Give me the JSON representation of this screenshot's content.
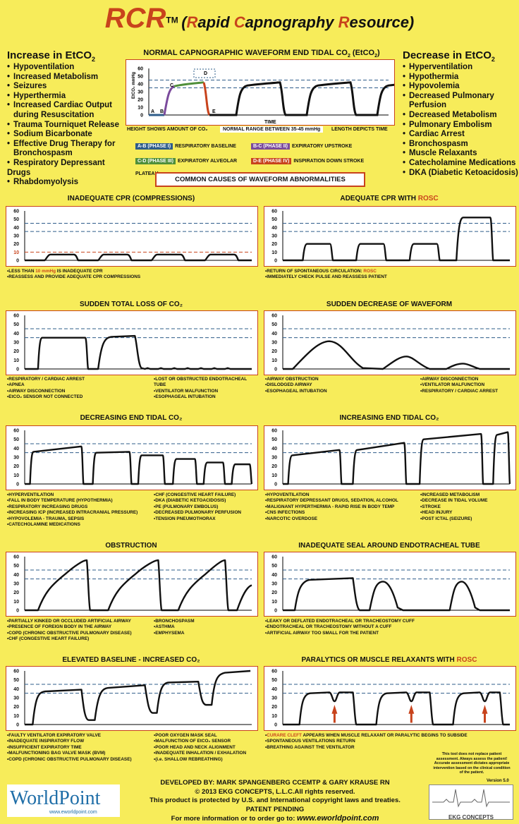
{
  "header": {
    "rcr": "RCR",
    "tm": "TM",
    "sub_pre": "(",
    "sub_r": "R",
    "sub_apid": "apid ",
    "sub_c": "C",
    "sub_apno": "apnography ",
    "sub_res_r": "R",
    "sub_esource": "esource)"
  },
  "increase": {
    "title": "Increase in EtCO",
    "sub": "2",
    "items": [
      "Hypoventilation",
      "Increased Metabolism",
      "Seizures",
      "Hyperthermia",
      "Increased Cardiac Output",
      "during Resuscitation",
      "Trauma Tourniquet Release",
      "Sodium Bicarbonate",
      "Effective Drug Therapy for",
      "Bronchospasm",
      "Respiratory Depressant Drugs",
      "Rhabdomyolysis"
    ]
  },
  "decrease": {
    "title": "Decrease in EtCO",
    "sub": "2",
    "items": [
      "Hyperventilation",
      "Hypothermia",
      "Hypovolemia",
      "Decreased Pulmonary",
      "Perfusion",
      "Decreased Metabolism",
      "Pulmonary Embolism",
      "Cardiac Arrest",
      "Bronchospasm",
      "Muscle Relaxants",
      "Catecholamine Medications",
      "DKA (Diabetic Ketoacidosis)"
    ]
  },
  "normal": {
    "title": "NORMAL CAPNOGRAPHIC WAVEFORM END TIDAL CO",
    "title_sub": "2",
    "title_end": " (EtCO",
    "title_end2": ")",
    "ylabel": "EtCO₂ mmHg",
    "time": "TIME",
    "yticks": [
      "60",
      "50",
      "40",
      "30",
      "20",
      "10",
      "0"
    ],
    "letters": [
      "A",
      "B",
      "C",
      "D",
      "E"
    ],
    "cap_left": "HEIGHT SHOWS AMOUNT OF CO₂",
    "cap_mid": "NORMAL RANGE BETWEEN 35-45 mmHg",
    "cap_right": "LENGTH DEPICTS TIME",
    "phases": [
      {
        "tag": "A-B (PHASE I)",
        "text": "RESPIRATORY BASELINE",
        "color": "#2e5c8a"
      },
      {
        "tag": "B-C (PHASE II)",
        "text": "EXPIRATORY UPSTROKE",
        "color": "#7b4a9c"
      },
      {
        "tag": "C-D (PHASE III)",
        "text": "EXPIRATORY ALVEOLAR PLATEAU",
        "color": "#4f8f3a"
      },
      {
        "tag": "D-E (PHASE IV)",
        "text": "INSPIRATION DOWN STROKE",
        "color": "#c8431c"
      }
    ]
  },
  "common": "COMMON CAUSES OF WAVEFORM ABNORMALITIES",
  "yticks": [
    "60",
    "50",
    "40",
    "30",
    "20",
    "10",
    "0"
  ],
  "panels": [
    {
      "title": "INADEQUATE CPR (COMPRESSIONS)",
      "notes_left": [
        "LESS THAN 10 mmHg IS INADEQUATE CPR",
        "REASSESS AND PROVIDE ADEQUATE CPR COMPRESSIONS"
      ],
      "notes_right": []
    },
    {
      "title": "ADEQUATE CPR WITH ",
      "title_red": "ROSC",
      "notes_left": [
        "RETURN OF SPONTANEOUS CIRCULATION: ROSC",
        "IMMEDIATELY CHECK PULSE AND REASSESS PATIENT"
      ],
      "notes_right": []
    },
    {
      "title": "SUDDEN TOTAL LOSS OF CO₂",
      "notes_left": [
        "RESPIRATORY / CARDIAC ARREST",
        "APNEA",
        "AIRWAY DISCONNECTION",
        "EtCO₂ SENSOR NOT CONNECTED"
      ],
      "notes_right": [
        "LOST OR OBSTRUCTED ENDOTRACHEAL TUBE",
        "VENTILATOR MALFUNCTION",
        "ESOPHAGEAL INTUBATION"
      ]
    },
    {
      "title": "SUDDEN DECREASE OF WAVEFORM",
      "notes_left": [
        "AIRWAY OBSTRUCTION",
        "DISLODGED AIRWAY",
        "ESOPHAGEAL INTUBATION"
      ],
      "notes_right": [
        "AIRWAY DISCONNECTION",
        "VENTILATOR MALFUNCTION",
        "RESPIRATORY / CARDIAC ARREST"
      ]
    },
    {
      "title": "DECREASING END TIDAL CO₂",
      "notes_left": [
        "HYPERVENTILATION",
        "FALL IN BODY TEMPERATURE (HYPOTHERMIA)",
        "RESPIRATORY INCREASING DRUGS",
        "INCREASING ICP (INCREASED INTRACRANIAL PRESSURE)",
        "HYPOVOLEMIA - TRAUMA, SEPSIS",
        "CATECHOLAMINE MEDICATIONS"
      ],
      "notes_right": [
        "CHF (CONGESTIVE HEART FAILURE)",
        "DKA (DIABETIC KETOACIDOSIS)",
        "PE (PULMONARY EMBOLUS)",
        "DECREASED PULMONARY PERFUSION",
        "TENSION PNEUMOTHORAX"
      ]
    },
    {
      "title": "INCREASING END TIDAL CO₂",
      "notes_left": [
        "HYPOVENTILATION",
        "RESPIRATORY DEPRESSANT DRUGS, SEDATION, ALCOHOL",
        "MALIGNANT HYPERTHERMIA - RAPID RISE IN BODY TEMP",
        "CNS INFECTIONS",
        "NARCOTIC OVERDOSE"
      ],
      "notes_right": [
        "INCREASED METABOLISM",
        "DECREASE IN TIDAL VOLUME",
        "STROKE",
        "HEAD INJURY",
        "POST ICTAL (SEIZURE)"
      ]
    },
    {
      "title": "OBSTRUCTION",
      "notes_left": [
        "PARTIALLY KINKED OR OCCLUDED ARTIFICIAL AIRWAY",
        "PRESENCE OF FOREIGN BODY IN THE AIRWAY",
        "COPD (CHRONIC OBSTRUCTIVE PULMONARY DISEASE)",
        "CHF (CONGESTIVE HEART FAILURE)"
      ],
      "notes_right": [
        "BRONCHOSPASM",
        "ASTHMA",
        "EMPHYSEMA"
      ]
    },
    {
      "title": "INADEQUATE SEAL AROUND ENDOTRACHEAL TUBE",
      "notes_left": [
        "LEAKY OR DEFLATED ENDOTRACHEAL OR TRACHEOSTOMY CUFF",
        "ENDOTRACHEAL OR TRACHEOSTOMY WITHOUT A CUFF",
        "ARTIFICIAL AIRWAY TOO SMALL FOR THE PATIENT"
      ],
      "notes_right": []
    },
    {
      "title": "ELEVATED BASELINE - INCREASED CO₂",
      "notes_left": [
        "FAULTY VENTILATOR EXPIRATORY VALVE",
        "INADEQUATE INSPIRATORY FLOW",
        "INSUFFICIENT EXPIRATORY TIME",
        "MALFUNCTIONING BAG VALVE MASK (BVM)",
        "COPD (CHRONIC OBSTRUCTIVE PULMONARY DISEASE)"
      ],
      "notes_right": [
        "POOR OXYGEN MASK SEAL",
        "MALFUNCTION OF EtCO₂ SENSOR",
        "POOR HEAD AND NECK ALIGNMENT",
        "INADEQUATE INHALATION / EXHALATION",
        "(i.e. SHALLOW REBREATHING)"
      ]
    },
    {
      "title": "PARALYTICS OR MUSCLE RELAXANTS WITH ",
      "title_red": "ROSC",
      "notes_left": [
        "CURARE CLEFT APPEARS WHEN MUSCLE RELAXANT OR PARALYTIC BEGINS TO SUBSIDE",
        "SPONTANEOUS VENTILATIONS RETURN",
        "BREATHING AGAINST THE VENTILATOR"
      ],
      "notes_right": []
    }
  ],
  "disclaimer": "This tool does not replace patient assessment. Always assess the patient! Accurate assessment dictates appropriate intervention based on the clinical condition of the patient.",
  "version": "Version 5.0",
  "footer": {
    "developed": "DEVELOPED BY: MARK SPANGENBERG CCEMTP  &  GARY KRAUSE RN",
    "copyright": "© 2013 EKG CONCEPTS, L.L.C.All rights reserved.",
    "protected": "This product is protected by U.S. and International copyright laws and treaties.",
    "patent": "PATENT PENDING",
    "info": "For more information or to order go to: ",
    "url": "www.eworldpoint.com"
  },
  "worldpoint": {
    "logo": "WorldPoint",
    "url": "www.eworldpoint.com"
  },
  "ekg_logo": "EKG CONCEPTS"
}
